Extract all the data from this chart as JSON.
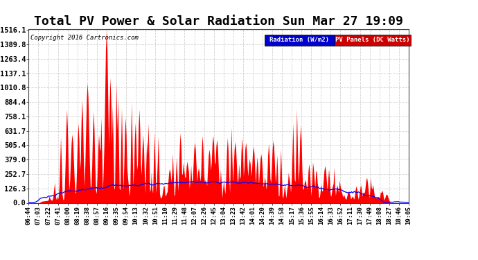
{
  "title": "Total PV Power & Solar Radiation Sun Mar 27 19:09",
  "copyright": "Copyright 2016 Cartronics.com",
  "legend_labels": [
    "Radiation (W/m2)",
    "PV Panels (DC Watts)"
  ],
  "yticks": [
    0.0,
    126.3,
    252.7,
    379.0,
    505.4,
    631.7,
    758.1,
    884.4,
    1010.8,
    1137.1,
    1263.4,
    1389.8,
    1516.1
  ],
  "ymax": 1516.1,
  "ymin": 0.0,
  "background_color": "#ffffff",
  "plot_bg_color": "#ffffff",
  "grid_color": "#cccccc",
  "title_fontsize": 13,
  "axis_fontsize": 7.5,
  "red_fill_color": "#ff0000",
  "blue_line_color": "#0000ff",
  "blue_legend_color": "#0000cc",
  "red_legend_color": "#cc0000",
  "time_labels": [
    "06:44",
    "07:03",
    "07:22",
    "07:41",
    "08:00",
    "08:19",
    "08:38",
    "08:57",
    "09:16",
    "09:35",
    "09:54",
    "10:13",
    "10:32",
    "10:51",
    "11:10",
    "11:29",
    "11:48",
    "12:07",
    "12:26",
    "12:45",
    "13:04",
    "13:23",
    "13:42",
    "14:01",
    "14:20",
    "14:39",
    "14:58",
    "15:17",
    "15:36",
    "15:55",
    "16:14",
    "16:33",
    "16:52",
    "17:11",
    "17:30",
    "17:49",
    "18:08",
    "18:27",
    "18:46",
    "19:05"
  ]
}
